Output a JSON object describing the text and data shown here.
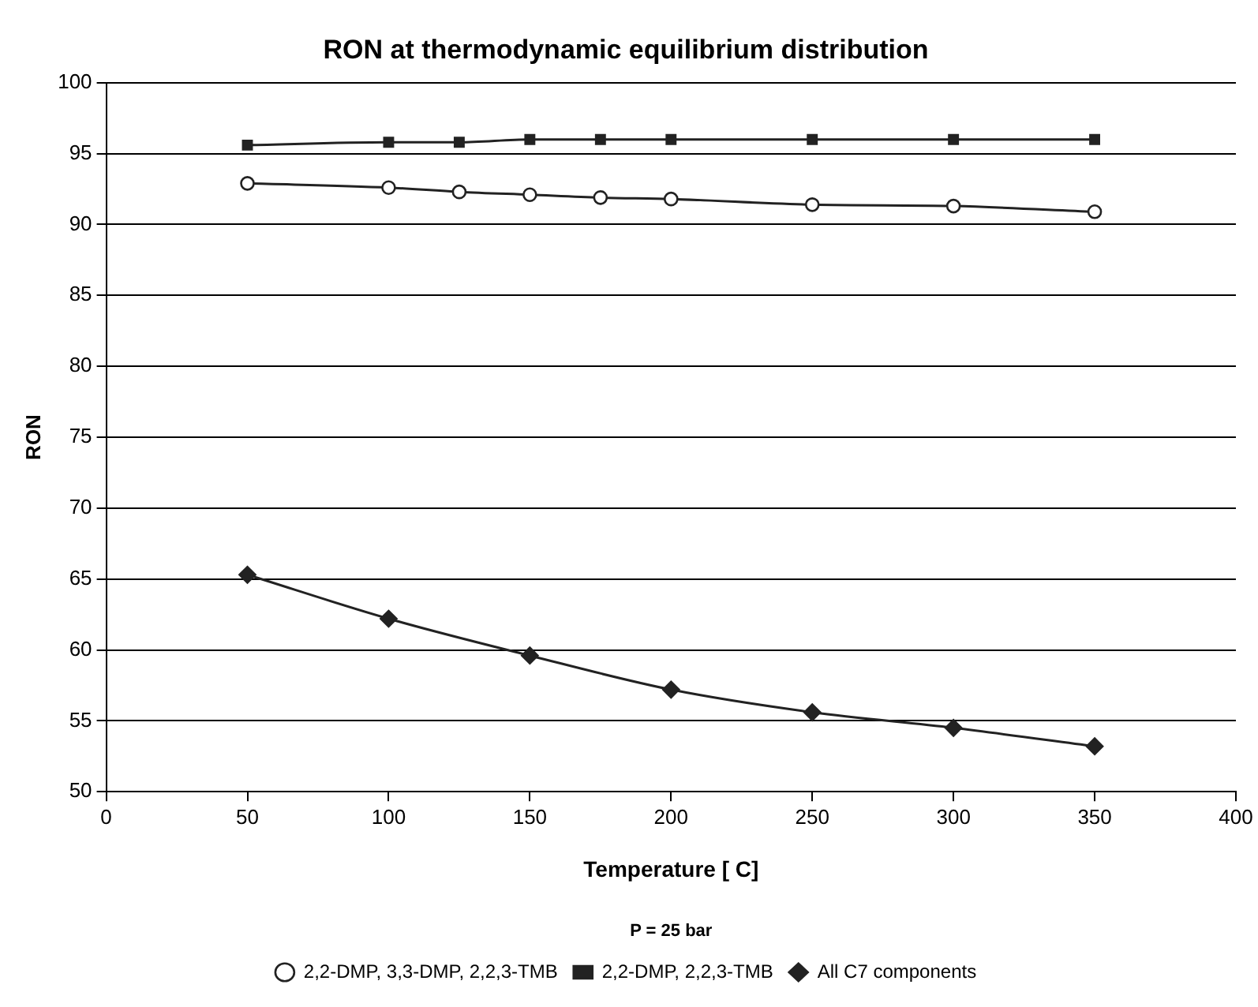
{
  "chart_data": {
    "type": "line",
    "title": "RON at thermodynamic equilibrium distribution",
    "xlabel": "Temperature [ C]",
    "ylabel": "RON",
    "annotations": [
      "P = 25 bar"
    ],
    "xlim": [
      0,
      400
    ],
    "xticks": [
      0,
      50,
      100,
      150,
      200,
      250,
      300,
      350,
      400
    ],
    "ylim": [
      50,
      100
    ],
    "yticks": [
      50,
      55,
      60,
      65,
      70,
      75,
      80,
      85,
      90,
      95,
      100
    ],
    "grid": "y",
    "legend": "bottom",
    "line_style": "solid",
    "series": [
      {
        "name": "2,2-DMP, 3,3-DMP, 2,2,3-TMB",
        "color": "#222222",
        "marker": "circle",
        "x": [
          50,
          100,
          125,
          150,
          175,
          200,
          250,
          300,
          350
        ],
        "values": [
          92.9,
          92.6,
          92.3,
          92.1,
          91.9,
          91.8,
          91.4,
          91.3,
          90.9
        ]
      },
      {
        "name": "2,2-DMP, 2,2,3-TMB",
        "color": "#222222",
        "marker": "square",
        "x": [
          50,
          100,
          125,
          150,
          175,
          200,
          250,
          300,
          350
        ],
        "values": [
          95.6,
          95.8,
          95.8,
          96.0,
          96.0,
          96.0,
          96.0,
          96.0,
          96.0
        ]
      },
      {
        "name": "All C7 components",
        "color": "#222222",
        "marker": "diamond",
        "x": [
          50,
          100,
          150,
          200,
          250,
          300,
          350
        ],
        "values": [
          65.3,
          62.2,
          59.6,
          57.2,
          55.6,
          54.5,
          53.2
        ]
      }
    ]
  }
}
